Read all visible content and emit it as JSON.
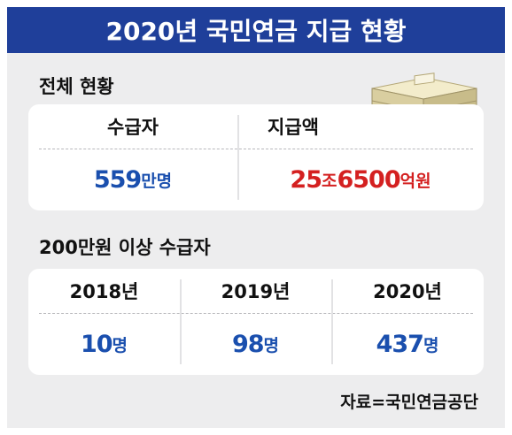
{
  "title": "2020년 국민연금 지급 현황",
  "overall": {
    "label": "전체 현황",
    "recipients": {
      "header": "수급자",
      "value": "559",
      "unit": "만명"
    },
    "payment": {
      "header": "지급액",
      "value_a": "25",
      "unit_a": "조",
      "value_b": "6500",
      "unit_b": "억원"
    }
  },
  "high_recipients": {
    "label": "200만원 이상 수급자",
    "years": [
      {
        "year": "2018년",
        "value": "10",
        "unit": "명"
      },
      {
        "year": "2019년",
        "value": "98",
        "unit": "명"
      },
      {
        "year": "2020년",
        "value": "437",
        "unit": "명"
      }
    ]
  },
  "source": "자료=국민연금공단",
  "icons": {
    "money": "money-stack-icon"
  },
  "colors": {
    "title_bg": "#1f3f9a",
    "blue": "#1a4fae",
    "red": "#d42020"
  },
  "chart_data": {
    "type": "table",
    "title": "2020년 국민연금 지급 현황",
    "tables": [
      {
        "name": "전체 현황",
        "columns": [
          "수급자",
          "지급액"
        ],
        "values": [
          "559만명",
          "25조6500억원"
        ]
      },
      {
        "name": "200만원 이상 수급자",
        "columns": [
          "2018년",
          "2019년",
          "2020년"
        ],
        "values": [
          10,
          98,
          437
        ],
        "unit": "명"
      }
    ]
  }
}
